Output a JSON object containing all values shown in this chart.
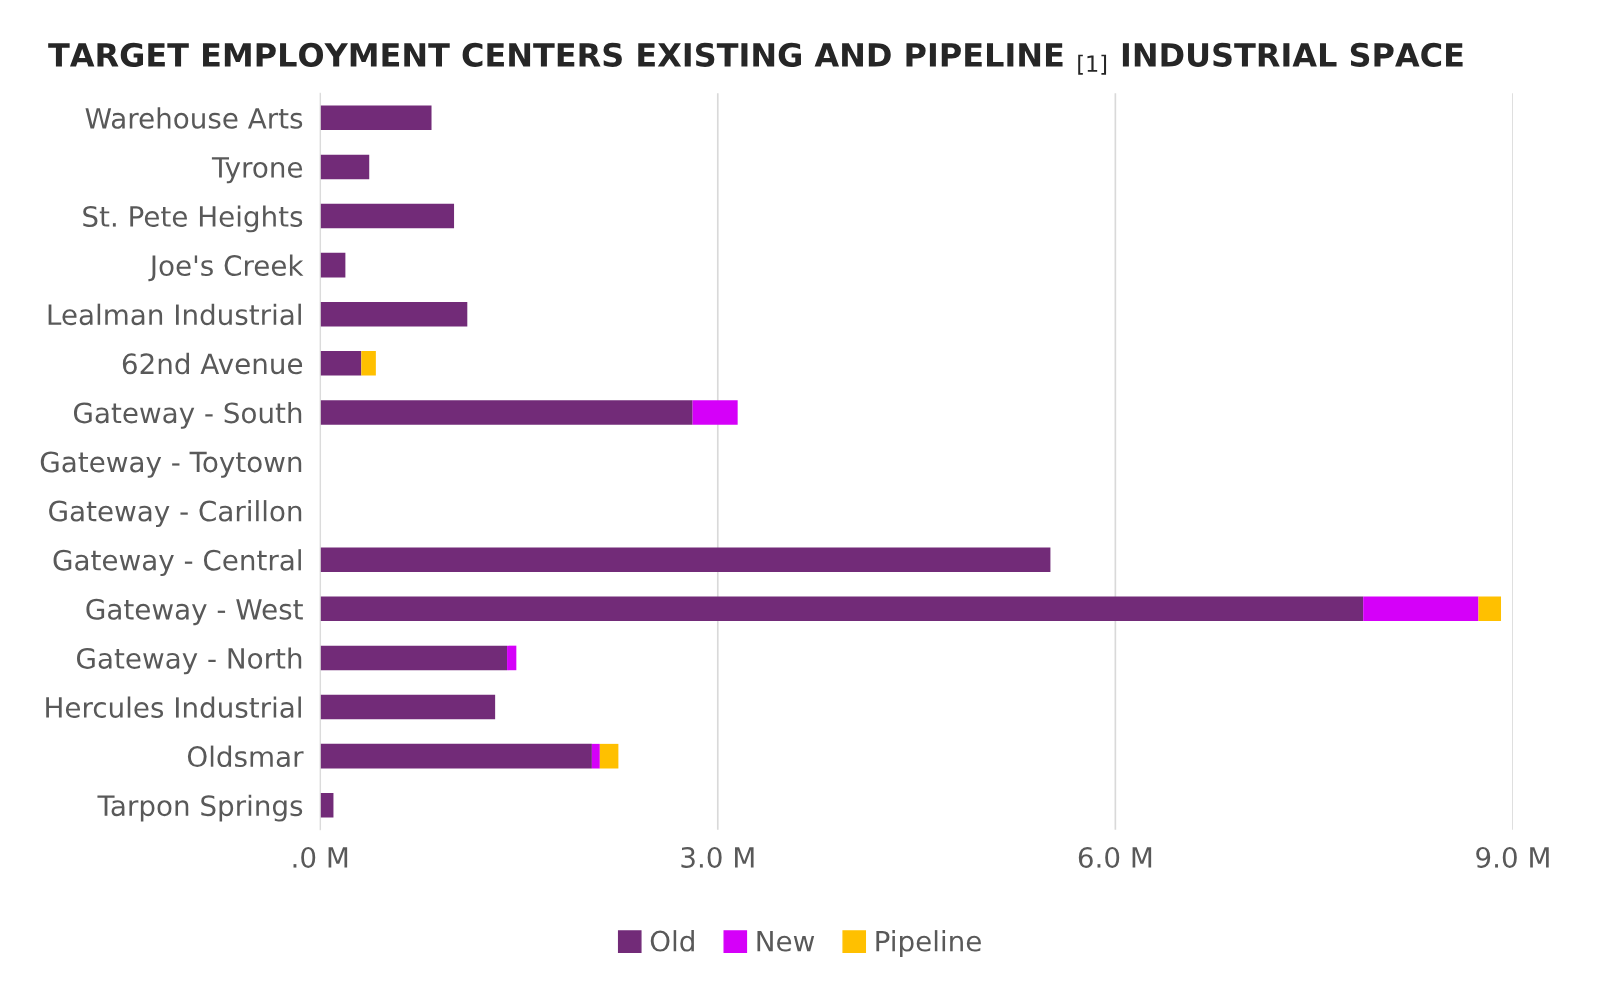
{
  "chart_data": {
    "type": "bar",
    "orientation": "horizontal",
    "stacked": true,
    "title": "TARGET EMPLOYMENT CENTERS EXISTING AND PIPELINE $_{[1]}$ INDUSTRIAL SPACE",
    "categories": [
      "Warehouse Arts",
      "Tyrone",
      "St. Pete Heights",
      "Joe's Creek",
      "Lealman Industrial",
      "62nd Avenue",
      "Gateway - South",
      "Gateway - Toytown",
      "Gateway - Carillon",
      "Gateway - Central",
      "Gateway - West",
      "Gateway - North",
      "Hercules Industrial",
      "Oldsmar",
      "Tarpon Springs"
    ],
    "series": [
      {
        "name": "Old",
        "color": "#722b78",
        "values": [
          0.84,
          0.37,
          1.01,
          0.19,
          1.11,
          0.31,
          2.81,
          null,
          null,
          5.51,
          7.87,
          1.41,
          1.32,
          2.05,
          0.1
        ]
      },
      {
        "name": "New",
        "color": "#d500f9",
        "values": [
          null,
          null,
          null,
          null,
          null,
          null,
          0.34,
          null,
          null,
          null,
          0.87,
          0.07,
          null,
          0.06,
          null
        ]
      },
      {
        "name": "Pipeline",
        "color": "#ffc000",
        "values": [
          null,
          null,
          null,
          null,
          null,
          0.11,
          null,
          null,
          null,
          null,
          0.17,
          null,
          null,
          0.14,
          null
        ]
      }
    ],
    "xlim": [
      0,
      9.0
    ],
    "xticks": [
      {
        "value": 0,
        "label": ".0 M"
      },
      {
        "value": 3,
        "label": "3.0 M"
      },
      {
        "value": 6,
        "label": "6.0 M"
      },
      {
        "value": 9,
        "label": "9.0 M"
      }
    ],
    "grid": "x",
    "legend": "bottom"
  }
}
